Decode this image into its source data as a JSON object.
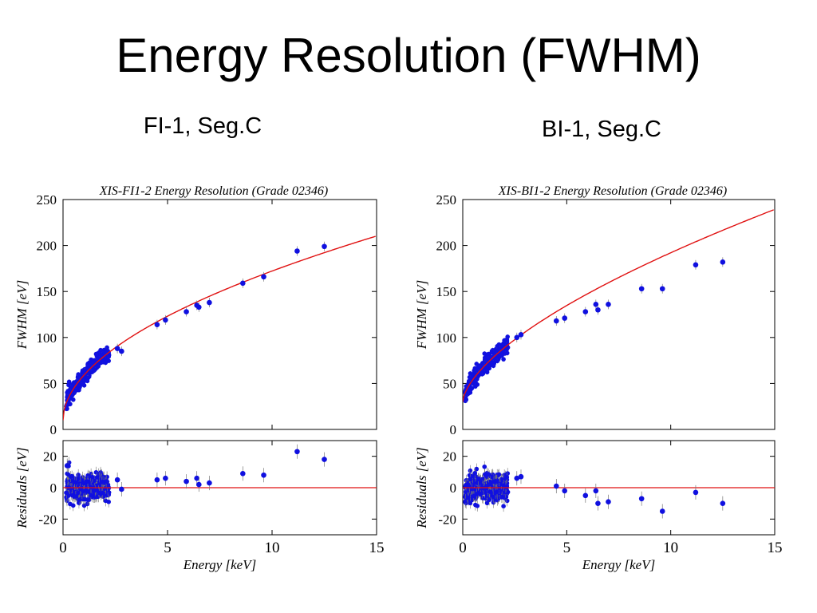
{
  "slide": {
    "title": "Energy Resolution (FWHM)",
    "captions": [
      "FI-1, Seg.C",
      "BI-1, Seg.C"
    ]
  },
  "colors": {
    "data": "#1010e0",
    "fit": "#e01010",
    "axis": "#000000"
  },
  "chart_data": [
    {
      "type": "scatter",
      "title": "XIS-FI1-2  Energy Resolution  (Grade 02346)",
      "xlabel": "Energy [keV]",
      "ylabel": "FWHM [eV]",
      "xlim": [
        0,
        15
      ],
      "ylim": [
        0,
        250
      ],
      "xticks": [
        0,
        5,
        10,
        15
      ],
      "yticks": [
        0,
        50,
        100,
        150,
        200,
        250
      ],
      "grid": false,
      "fit_curve": {
        "a": 10,
        "b": 49,
        "exponent": 0.52
      },
      "cluster": {
        "x_range": [
          0.15,
          2.2
        ],
        "points": 320,
        "residual_sd": 4.5
      },
      "points": [
        {
          "x": 2.6,
          "y": 88
        },
        {
          "x": 2.8,
          "y": 85
        },
        {
          "x": 4.5,
          "y": 114
        },
        {
          "x": 4.9,
          "y": 119
        },
        {
          "x": 5.9,
          "y": 128
        },
        {
          "x": 6.4,
          "y": 135
        },
        {
          "x": 6.5,
          "y": 133
        },
        {
          "x": 7.0,
          "y": 138
        },
        {
          "x": 8.6,
          "y": 159
        },
        {
          "x": 9.6,
          "y": 166
        },
        {
          "x": 11.2,
          "y": 194
        },
        {
          "x": 12.5,
          "y": 199
        }
      ],
      "residuals": {
        "ylabel": "Residuals [eV]",
        "ylim": [
          -30,
          30
        ],
        "yticks": [
          -20,
          0,
          20
        ],
        "points": [
          {
            "x": 0.2,
            "y": 14
          },
          {
            "x": 2.6,
            "y": 5
          },
          {
            "x": 2.8,
            "y": -1
          },
          {
            "x": 4.5,
            "y": 5
          },
          {
            "x": 4.9,
            "y": 6
          },
          {
            "x": 5.9,
            "y": 4
          },
          {
            "x": 6.4,
            "y": 6
          },
          {
            "x": 6.5,
            "y": 2
          },
          {
            "x": 7.0,
            "y": 3
          },
          {
            "x": 8.6,
            "y": 9
          },
          {
            "x": 9.6,
            "y": 8
          },
          {
            "x": 11.2,
            "y": 23
          },
          {
            "x": 12.5,
            "y": 18
          }
        ]
      }
    },
    {
      "type": "scatter",
      "title": "XIS-BI1-2  Energy Resolution  (Grade 02346)",
      "xlabel": "Energy [keV]",
      "ylabel": "FWHM [eV]",
      "xlim": [
        0,
        15
      ],
      "ylim": [
        0,
        250
      ],
      "xticks": [
        0,
        5,
        10,
        15
      ],
      "yticks": [
        0,
        50,
        100,
        150,
        200,
        250
      ],
      "grid": false,
      "fit_curve": {
        "a": 30,
        "b": 38,
        "exponent": 0.63
      },
      "cluster": {
        "x_range": [
          0.1,
          2.2
        ],
        "points": 320,
        "residual_sd": 4.5
      },
      "points": [
        {
          "x": 2.6,
          "y": 100
        },
        {
          "x": 2.8,
          "y": 103
        },
        {
          "x": 4.5,
          "y": 118
        },
        {
          "x": 4.9,
          "y": 121
        },
        {
          "x": 5.9,
          "y": 128
        },
        {
          "x": 6.4,
          "y": 136
        },
        {
          "x": 6.5,
          "y": 130
        },
        {
          "x": 7.0,
          "y": 136
        },
        {
          "x": 8.6,
          "y": 153
        },
        {
          "x": 9.6,
          "y": 153
        },
        {
          "x": 11.2,
          "y": 179
        },
        {
          "x": 12.5,
          "y": 182
        }
      ],
      "residuals": {
        "ylabel": "Residuals [eV]",
        "ylim": [
          -30,
          30
        ],
        "yticks": [
          -20,
          0,
          20
        ],
        "points": [
          {
            "x": 2.6,
            "y": 6
          },
          {
            "x": 2.8,
            "y": 7
          },
          {
            "x": 4.5,
            "y": 1
          },
          {
            "x": 4.9,
            "y": -2
          },
          {
            "x": 5.9,
            "y": -5
          },
          {
            "x": 6.4,
            "y": -2
          },
          {
            "x": 6.5,
            "y": -10
          },
          {
            "x": 7.0,
            "y": -9
          },
          {
            "x": 8.6,
            "y": -7
          },
          {
            "x": 9.6,
            "y": -15
          },
          {
            "x": 11.2,
            "y": -3
          },
          {
            "x": 12.5,
            "y": -10
          }
        ]
      }
    }
  ]
}
